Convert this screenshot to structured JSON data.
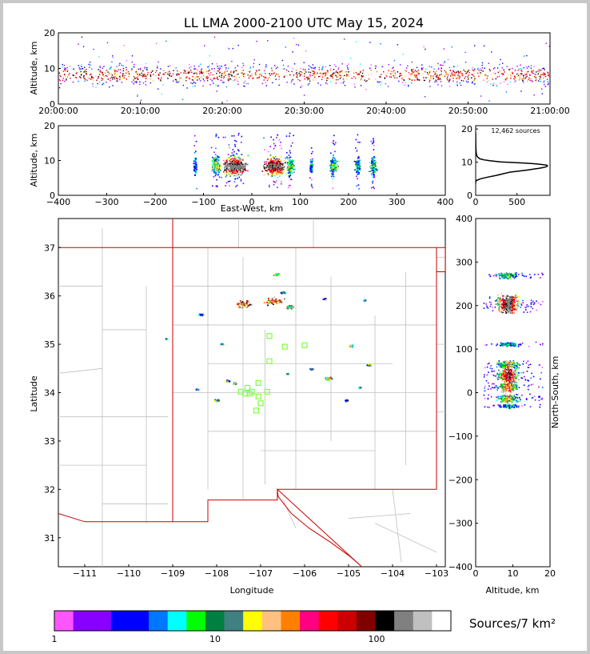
{
  "title": "LL LMA 2000-2100 UTC May 15, 2024",
  "colors": {
    "frame": "#c8c8c8",
    "border": "#cc0000",
    "counties": "#c0c0c0",
    "storm_markers": "#7fff3f"
  },
  "chart_data": [
    {
      "name": "altitude-vs-time",
      "type": "scatter",
      "ylabel": "Altitude, km",
      "ylim": [
        0,
        20
      ],
      "yticks": [
        "0",
        "10",
        "20"
      ],
      "xticks": [
        "20:00:00",
        "20:10:00",
        "20:20:00",
        "20:30:00",
        "20:40:00",
        "20:50:00",
        "21:00:00"
      ],
      "xlim_minutes": [
        0,
        60
      ],
      "core_altitude_km": [
        5,
        11
      ],
      "max_altitude_km": 19
    },
    {
      "name": "altitude-vs-east-west",
      "type": "scatter",
      "xlabel": "East-West, km",
      "ylabel": "Altitude, km",
      "xlim": [
        -400,
        400
      ],
      "ylim": [
        0,
        20
      ],
      "xticks": [
        "−400",
        "−300",
        "−200",
        "−100",
        "0",
        "100",
        "200",
        "300",
        "400"
      ],
      "yticks": [
        "0",
        "10",
        "20"
      ],
      "clusters_km": [
        {
          "x": -118,
          "spread": 3
        },
        {
          "x": -75,
          "spread": 8
        },
        {
          "x": -35,
          "spread": 22
        },
        {
          "x": 45,
          "spread": 20
        },
        {
          "x": 78,
          "spread": 8
        },
        {
          "x": 122,
          "spread": 3
        },
        {
          "x": 168,
          "spread": 7
        },
        {
          "x": 218,
          "spread": 5
        },
        {
          "x": 250,
          "spread": 6
        }
      ]
    },
    {
      "name": "altitude-histogram",
      "type": "line",
      "annotation": "12,462 sources",
      "xlim": [
        0,
        900
      ],
      "ylim": [
        0,
        21
      ],
      "xticks": [
        "0",
        "500"
      ],
      "yticks": [
        "0",
        "10",
        "20"
      ],
      "x": [
        0,
        0,
        10,
        60,
        150,
        250,
        330,
        420,
        520,
        620,
        700,
        760,
        800,
        840,
        860,
        870,
        860,
        800,
        720,
        600,
        450,
        300,
        180,
        100,
        50,
        25,
        12,
        6,
        3,
        2,
        0
      ],
      "y": [
        3.5,
        4.0,
        4.5,
        5.0,
        5.5,
        6.0,
        6.5,
        7.0,
        7.3,
        7.6,
        7.9,
        8.1,
        8.3,
        8.5,
        8.7,
        8.9,
        9.1,
        9.3,
        9.5,
        9.7,
        9.9,
        10.1,
        10.4,
        10.7,
        11.0,
        11.5,
        12.0,
        13.0,
        14.0,
        15.0,
        19.0
      ]
    },
    {
      "name": "plan-view-map",
      "type": "scatter",
      "xlabel": "Longitude",
      "ylabel": "Latitude",
      "xlim": [
        -111.6,
        -102.8
      ],
      "ylim": [
        30.4,
        37.6
      ],
      "xticks": [
        "−111",
        "−110",
        "−109",
        "−108",
        "−107",
        "−106",
        "−105",
        "−104",
        "−103"
      ],
      "yticks": [
        "31",
        "32",
        "33",
        "34",
        "35",
        "36",
        "37"
      ],
      "clusters": [
        {
          "lon": -107.4,
          "lat": 35.85,
          "spread": 0.18
        },
        {
          "lon": -106.7,
          "lat": 35.9,
          "spread": 0.18
        },
        {
          "lon": -106.35,
          "lat": 35.78,
          "spread": 0.1
        },
        {
          "lon": -106.65,
          "lat": 36.45,
          "spread": 0.06
        },
        {
          "lon": -106.5,
          "lat": 36.08,
          "spread": 0.05
        },
        {
          "lon": -105.55,
          "lat": 35.95,
          "spread": 0.04
        },
        {
          "lon": -104.65,
          "lat": 35.92,
          "spread": 0.04
        },
        {
          "lon": -108.35,
          "lat": 35.62,
          "spread": 0.05
        },
        {
          "lon": -107.9,
          "lat": 35.02,
          "spread": 0.04
        },
        {
          "lon": -104.95,
          "lat": 34.98,
          "spread": 0.05
        },
        {
          "lon": -104.55,
          "lat": 34.58,
          "spread": 0.06
        },
        {
          "lon": -105.45,
          "lat": 34.3,
          "spread": 0.08
        },
        {
          "lon": -105.85,
          "lat": 34.5,
          "spread": 0.04
        },
        {
          "lon": -106.4,
          "lat": 34.4,
          "spread": 0.03
        },
        {
          "lon": -107.75,
          "lat": 34.25,
          "spread": 0.05
        },
        {
          "lon": -107.6,
          "lat": 34.2,
          "spread": 0.05
        },
        {
          "lon": -108.0,
          "lat": 33.85,
          "spread": 0.06
        },
        {
          "lon": -108.45,
          "lat": 34.08,
          "spread": 0.04
        },
        {
          "lon": -105.05,
          "lat": 33.85,
          "spread": 0.05
        },
        {
          "lon": -104.75,
          "lat": 34.12,
          "spread": 0.03
        },
        {
          "lon": -109.15,
          "lat": 35.12,
          "spread": 0.02
        }
      ],
      "storm_markers": [
        [
          -106.8,
          35.17
        ],
        [
          -106.45,
          34.95
        ],
        [
          -106.0,
          34.98
        ],
        [
          -106.8,
          34.65
        ],
        [
          -107.05,
          34.2
        ],
        [
          -107.3,
          34.1
        ],
        [
          -107.2,
          34.02
        ],
        [
          -107.35,
          33.98
        ],
        [
          -106.85,
          34.02
        ],
        [
          -107.05,
          33.92
        ],
        [
          -107.0,
          33.78
        ],
        [
          -107.1,
          33.63
        ],
        [
          -107.45,
          34.02
        ],
        [
          -107.25,
          33.98
        ]
      ]
    },
    {
      "name": "north-south-vs-altitude",
      "type": "scatter",
      "xlabel": "Altitude, km",
      "ylabel": "North-South, km",
      "xlim": [
        0,
        20
      ],
      "ylim": [
        -400,
        400
      ],
      "xticks": [
        "0",
        "10",
        "20"
      ],
      "yticks": [
        "−400",
        "−300",
        "−200",
        "−100",
        "0",
        "100",
        "200",
        "300",
        "400"
      ],
      "clusters_km": [
        {
          "y": 270,
          "spread": 6
        },
        {
          "y": 205,
          "spread": 18
        },
        {
          "y": 112,
          "spread": 4
        },
        {
          "y": 65,
          "spread": 8
        },
        {
          "y": 40,
          "spread": 14
        },
        {
          "y": 15,
          "spread": 10
        },
        {
          "y": -12,
          "spread": 8
        },
        {
          "y": -30,
          "spread": 4
        }
      ]
    }
  ],
  "colorbar": {
    "label": "Sources/7 km²",
    "tick_labels": [
      "1",
      "10",
      "100"
    ],
    "colors": [
      "#ff55ff",
      "#8800ff",
      "#8800ff",
      "#0000ff",
      "#0000ff",
      "#0077ff",
      "#00ffff",
      "#00ff00",
      "#008040",
      "#408080",
      "#ffff00",
      "#ffc080",
      "#ff8000",
      "#ff0080",
      "#ff0000",
      "#cc0000",
      "#800000",
      "#000000",
      "#808080",
      "#c0c0c0",
      "#ffffff"
    ]
  }
}
